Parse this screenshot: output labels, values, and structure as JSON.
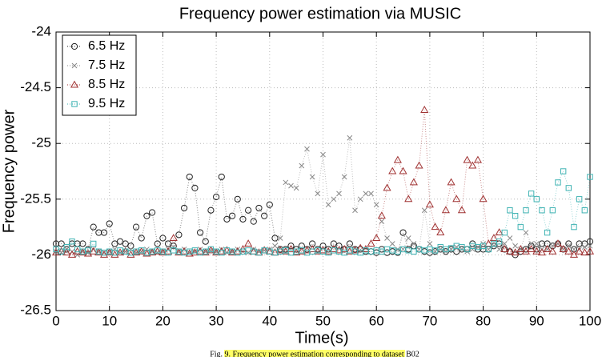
{
  "chart_data": {
    "type": "line",
    "title": "Frequency power estimation via MUSIC",
    "x_label": "Time(s)",
    "y_label": "Frequency power",
    "caption": "Fig. 9. Frequency power estimation corresponding to dataset B02",
    "xlim": [
      0,
      100
    ],
    "ylim": [
      -26.5,
      -24
    ],
    "xticks": [
      0,
      10,
      20,
      30,
      40,
      50,
      60,
      70,
      80,
      90,
      100
    ],
    "yticks": [
      -26.5,
      -26,
      -25.5,
      -25,
      -24.5,
      -24
    ],
    "grid": true,
    "legend": "upper left",
    "x": [
      0,
      1,
      2,
      3,
      4,
      5,
      6,
      7,
      8,
      9,
      10,
      11,
      12,
      13,
      14,
      15,
      16,
      17,
      18,
      19,
      20,
      21,
      22,
      23,
      24,
      25,
      26,
      27,
      28,
      29,
      30,
      31,
      32,
      33,
      34,
      35,
      36,
      37,
      38,
      39,
      40,
      41,
      42,
      43,
      44,
      45,
      46,
      47,
      48,
      49,
      50,
      51,
      52,
      53,
      54,
      55,
      56,
      57,
      58,
      59,
      60,
      61,
      62,
      63,
      64,
      65,
      66,
      67,
      68,
      69,
      70,
      71,
      72,
      73,
      74,
      75,
      76,
      77,
      78,
      79,
      80,
      81,
      82,
      83,
      84,
      85,
      86,
      87,
      88,
      89,
      90,
      91,
      92,
      93,
      94,
      95,
      96,
      97,
      98,
      99,
      100
    ],
    "series": [
      {
        "name": "6.5 Hz",
        "color": "#222222",
        "marker": "circle",
        "values": [
          -25.9,
          -25.9,
          -25.95,
          -25.9,
          -25.9,
          -25.9,
          -25.95,
          -25.75,
          -25.8,
          -25.8,
          -25.72,
          -25.9,
          -25.88,
          -25.9,
          -25.92,
          -25.75,
          -25.85,
          -25.65,
          -25.62,
          -25.9,
          -25.85,
          -25.9,
          -25.92,
          -25.82,
          -25.58,
          -25.3,
          -25.4,
          -25.8,
          -25.88,
          -25.6,
          -25.48,
          -25.3,
          -25.68,
          -25.65,
          -25.5,
          -25.68,
          -25.6,
          -25.7,
          -25.58,
          -25.65,
          -25.55,
          -25.85,
          -25.95,
          -25.95,
          -25.92,
          -25.95,
          -25.92,
          -25.95,
          -25.9,
          -25.95,
          -25.92,
          -25.95,
          -25.9,
          -25.92,
          -25.95,
          -25.9,
          -25.95,
          -25.95,
          -25.97,
          -25.97,
          -25.98,
          -25.95,
          -25.98,
          -25.97,
          -25.98,
          -25.8,
          -25.95,
          -25.92,
          -25.95,
          -25.97,
          -25.98,
          -25.97,
          -25.95,
          -25.97,
          -25.95,
          -25.97,
          -25.95,
          -25.95,
          -25.9,
          -25.95,
          -25.95,
          -25.95,
          -25.92,
          -25.9,
          -25.95,
          -25.97,
          -26,
          -25.97,
          -25.95,
          -25.92,
          -25.95,
          -25.9,
          -25.9,
          -25.92,
          -25.9,
          -25.95,
          -25.9,
          -25.95,
          -25.9,
          -25.9,
          -25.88
        ]
      },
      {
        "name": "7.5 Hz",
        "color": "#888888",
        "marker": "x",
        "values": [
          -25.97,
          -25.98,
          -25.95,
          -25.97,
          -26,
          -25.97,
          -25.98,
          -25.95,
          -25.97,
          -25.98,
          -25.97,
          -25.95,
          -25.98,
          -25.97,
          -25.95,
          -25.98,
          -25.97,
          -25.95,
          -25.97,
          -25.98,
          -25.97,
          -25.95,
          -25.93,
          -25.97,
          -25.95,
          -25.98,
          -25.97,
          -25.95,
          -25.97,
          -25.96,
          -25.97,
          -25.95,
          -25.98,
          -25.97,
          -25.95,
          -25.97,
          -25.98,
          -25.95,
          -25.97,
          -25.96,
          -25.95,
          -25.92,
          -25.85,
          -25.35,
          -25.38,
          -25.4,
          -25.2,
          -25.05,
          -25.3,
          -25.45,
          -25.1,
          -25.55,
          -25.5,
          -25.45,
          -25.3,
          -24.95,
          -25.6,
          -25.5,
          -25.45,
          -25.45,
          -25.55,
          -25.7,
          -25.85,
          -25.9,
          -25.95,
          -25.95,
          -25.85,
          -25.9,
          -25.95,
          -25.6,
          -25.9,
          -25.97,
          -25.95,
          -25.97,
          -25.95,
          -25.93,
          -25.95,
          -25.97,
          -25.95,
          -25.93,
          -25.9,
          -25.95,
          -25.92,
          -25.95,
          -25.9,
          -25.85,
          -25.92,
          -25.95,
          -25.8,
          -25.9,
          -25.9,
          -25.95,
          -25.95,
          -25.92,
          -25.9,
          -25.95,
          -25.92,
          -25.95,
          -25.95,
          -25.93,
          -25.92
        ]
      },
      {
        "name": "8.5 Hz",
        "color": "#a03232",
        "marker": "triangle",
        "values": [
          -25.98,
          -25.97,
          -25.98,
          -26,
          -25.97,
          -25.98,
          -25.99,
          -25.97,
          -25.98,
          -26,
          -25.98,
          -26,
          -25.98,
          -25.97,
          -26,
          -25.98,
          -25.97,
          -25.99,
          -25.98,
          -25.97,
          -25.98,
          -25.97,
          -25.85,
          -25.98,
          -25.97,
          -25.99,
          -25.98,
          -25.97,
          -25.98,
          -25.96,
          -25.98,
          -25.97,
          -25.96,
          -25.98,
          -25.97,
          -25.95,
          -25.9,
          -25.97,
          -25.98,
          -25.96,
          -25.97,
          -25.98,
          -25.96,
          -25.97,
          -25.95,
          -25.98,
          -25.97,
          -25.96,
          -25.95,
          -25.97,
          -25.96,
          -25.97,
          -25.95,
          -25.96,
          -25.95,
          -25.97,
          -25.96,
          -25.94,
          -25.95,
          -25.9,
          -25.85,
          -25.65,
          -25.4,
          -25.25,
          -25.15,
          -25.25,
          -25.5,
          -25.35,
          -25.2,
          -24.7,
          -25.55,
          -25.75,
          -25.8,
          -25.6,
          -25.35,
          -25.5,
          -25.6,
          -25.15,
          -25.2,
          -25.15,
          -25.5,
          -25.9,
          -25.85,
          -25.8,
          -25.95,
          -25.97,
          -25.98,
          -25.95,
          -25.97,
          -25.95,
          -25.97,
          -25.98,
          -25.95,
          -25.97,
          -25.9,
          -25.95,
          -25.97,
          -26,
          -25.97,
          -25.98,
          -25.97
        ]
      },
      {
        "name": "9.5 Hz",
        "color": "#3fb3b3",
        "marker": "square",
        "values": [
          -25.95,
          -25.97,
          -25.93,
          -25.88,
          -25.95,
          -25.97,
          -25.96,
          -25.9,
          -25.97,
          -25.98,
          -25.97,
          -25.98,
          -25.96,
          -25.97,
          -25.98,
          -25.97,
          -25.96,
          -25.98,
          -25.97,
          -25.96,
          -25.97,
          -25.98,
          -25.96,
          -25.97,
          -25.98,
          -25.97,
          -25.96,
          -25.98,
          -25.97,
          -25.95,
          -25.97,
          -25.98,
          -25.96,
          -25.97,
          -25.98,
          -25.97,
          -25.96,
          -25.97,
          -25.98,
          -25.96,
          -25.97,
          -25.98,
          -25.97,
          -25.96,
          -25.98,
          -25.97,
          -25.96,
          -25.98,
          -25.97,
          -25.96,
          -25.97,
          -25.98,
          -25.96,
          -25.97,
          -25.98,
          -25.96,
          -25.97,
          -25.98,
          -25.96,
          -25.97,
          -25.96,
          -25.97,
          -25.95,
          -25.96,
          -25.97,
          -25.95,
          -25.96,
          -25.97,
          -25.95,
          -25.96,
          -25.95,
          -25.96,
          -25.93,
          -25.95,
          -25.94,
          -25.92,
          -25.93,
          -25.95,
          -25.92,
          -25.93,
          -25.92,
          -25.95,
          -25.9,
          -25.88,
          -25.8,
          -25.6,
          -25.65,
          -25.75,
          -25.6,
          -25.45,
          -25.5,
          -25.6,
          -25.8,
          -25.6,
          -25.35,
          -25.25,
          -25.4,
          -25.75,
          -25.5,
          -25.6,
          -25.3
        ]
      }
    ]
  }
}
